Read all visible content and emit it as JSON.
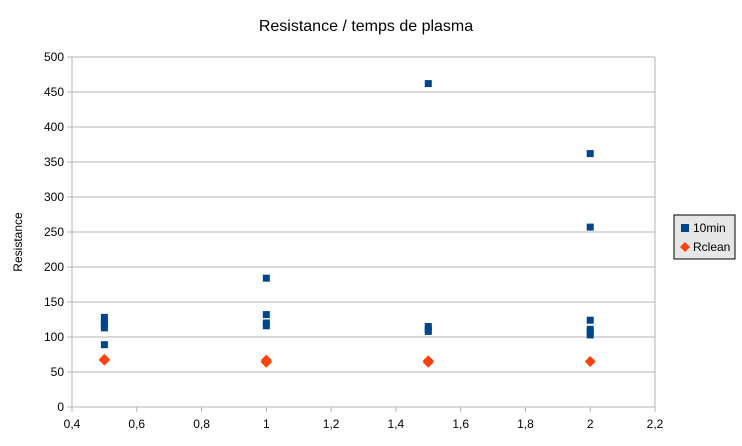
{
  "chart_data": {
    "type": "scatter",
    "title": "Resistance / temps de plasma",
    "xlabel": "",
    "ylabel": "Resistance",
    "xlim": [
      0.4,
      2.2
    ],
    "ylim": [
      0,
      500
    ],
    "x_ticks": [
      0.4,
      0.6,
      0.8,
      1,
      1.2,
      1.4,
      1.6,
      1.8,
      2,
      2.2
    ],
    "x_tick_labels": [
      "0,4",
      "0,6",
      "0,8",
      "1",
      "1,2",
      "1,4",
      "1,6",
      "1,8",
      "2",
      "2,2"
    ],
    "y_ticks": [
      0,
      50,
      100,
      150,
      200,
      250,
      300,
      350,
      400,
      450,
      500
    ],
    "y_tick_labels": [
      "0",
      "50",
      "100",
      "150",
      "200",
      "250",
      "300",
      "350",
      "400",
      "450",
      "500"
    ],
    "grid": "horizontal",
    "legend_position": "right",
    "series": [
      {
        "name": "10min",
        "color": "#004586",
        "marker": "square",
        "points": [
          {
            "x": 0.5,
            "y": 128
          },
          {
            "x": 0.5,
            "y": 122
          },
          {
            "x": 0.5,
            "y": 118
          },
          {
            "x": 0.5,
            "y": 113
          },
          {
            "x": 0.5,
            "y": 89
          },
          {
            "x": 1,
            "y": 184
          },
          {
            "x": 1,
            "y": 132
          },
          {
            "x": 1,
            "y": 120
          },
          {
            "x": 1,
            "y": 116
          },
          {
            "x": 1.5,
            "y": 462
          },
          {
            "x": 1.5,
            "y": 115
          },
          {
            "x": 1.5,
            "y": 111
          },
          {
            "x": 1.5,
            "y": 108
          },
          {
            "x": 2,
            "y": 362
          },
          {
            "x": 2,
            "y": 257
          },
          {
            "x": 2,
            "y": 124
          },
          {
            "x": 2,
            "y": 111
          },
          {
            "x": 2,
            "y": 107
          },
          {
            "x": 2,
            "y": 103
          }
        ]
      },
      {
        "name": "Rclean",
        "color": "#ff420e",
        "marker": "diamond",
        "points": [
          {
            "x": 0.5,
            "y": 68
          },
          {
            "x": 0.5,
            "y": 67
          },
          {
            "x": 1,
            "y": 67
          },
          {
            "x": 1,
            "y": 65
          },
          {
            "x": 1,
            "y": 64
          },
          {
            "x": 1.5,
            "y": 66
          },
          {
            "x": 1.5,
            "y": 64
          },
          {
            "x": 2,
            "y": 65
          }
        ]
      }
    ]
  }
}
